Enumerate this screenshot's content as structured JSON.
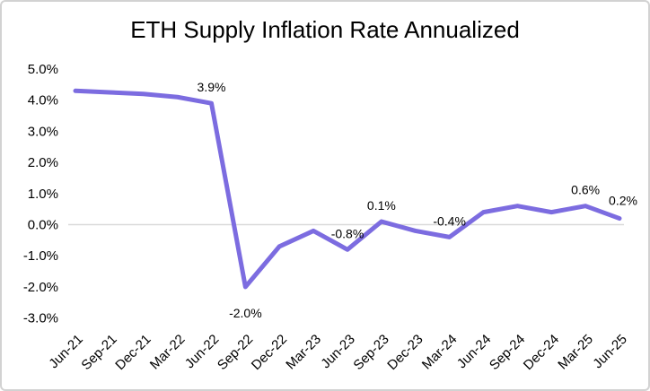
{
  "frame": {
    "background": "#ffffff",
    "border_color": "#d2d2d2"
  },
  "chart": {
    "title": "ETH Supply Inflation Rate Annualized"
  },
  "chart_data": {
    "type": "line",
    "title": "ETH Supply Inflation Rate Annualized",
    "xlabel": "",
    "ylabel": "",
    "categories": [
      "Jun-21",
      "Sep-21",
      "Dec-21",
      "Mar-22",
      "Jun-22",
      "Sep-22",
      "Dec-22",
      "Mar-23",
      "Jun-23",
      "Sep-23",
      "Dec-23",
      "Mar-24",
      "Jun-24",
      "Sep-24",
      "Dec-24",
      "Mar-25",
      "Jun-25"
    ],
    "values": [
      4.3,
      4.25,
      4.2,
      4.1,
      3.9,
      -2.0,
      -0.7,
      -0.2,
      -0.8,
      0.1,
      -0.2,
      -0.4,
      0.4,
      0.6,
      0.4,
      0.6,
      0.2
    ],
    "point_labels": [
      {
        "index": 4,
        "text": "3.9%",
        "position": "above"
      },
      {
        "index": 5,
        "text": "-2.0%",
        "position": "below"
      },
      {
        "index": 8,
        "text": "-0.8%",
        "position": "above"
      },
      {
        "index": 9,
        "text": "0.1%",
        "position": "above"
      },
      {
        "index": 11,
        "text": "-0.4%",
        "position": "above"
      },
      {
        "index": 15,
        "text": "0.6%",
        "position": "above"
      },
      {
        "index": 16,
        "text": "0.2%",
        "position": "above-right"
      }
    ],
    "y_ticks": [
      "5.0%",
      "4.0%",
      "3.0%",
      "2.0%",
      "1.0%",
      "0.0%",
      "-1.0%",
      "-2.0%",
      "-3.0%"
    ],
    "y_tick_values": [
      5,
      4,
      3,
      2,
      1,
      0,
      -1,
      -2,
      -3
    ],
    "ylim": [
      -3.0,
      5.0
    ],
    "grid": "zero-line-only",
    "legend": "none",
    "line_color": "#7C6CE0",
    "gridline_color": "#D9D9D9",
    "text_color": "#000000"
  }
}
